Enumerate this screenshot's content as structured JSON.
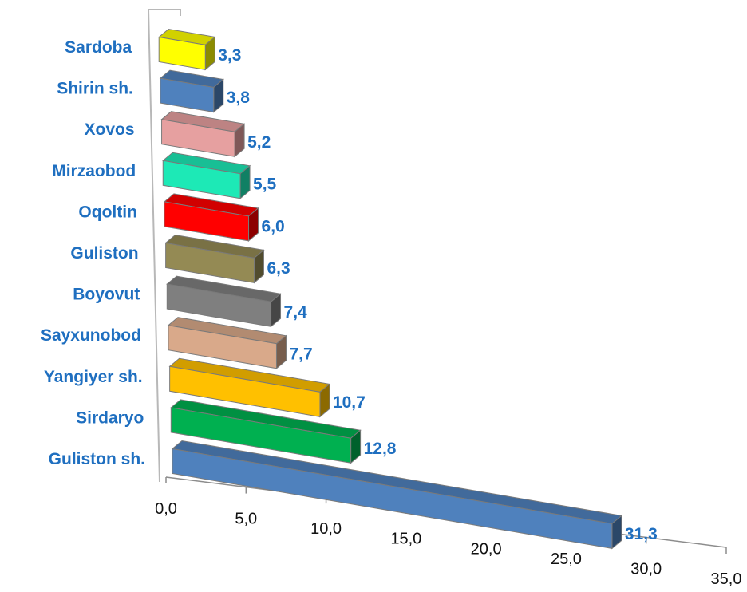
{
  "chart_data": {
    "type": "bar",
    "orientation": "horizontal",
    "style": "3d",
    "categories": [
      "Sardoba",
      "Shirin sh.",
      "Xovos",
      "Mirzaobod",
      "Oqoltin",
      "Guliston",
      "Boyovut",
      "Sayxunobod",
      "Yangiyer sh.",
      "Sirdaryo",
      "Guliston sh."
    ],
    "values": [
      3.3,
      3.8,
      5.2,
      5.5,
      6.0,
      6.3,
      7.4,
      7.7,
      10.7,
      12.8,
      31.3
    ],
    "value_labels": [
      "3,3",
      "3,8",
      "5,2",
      "5,5",
      "6,0",
      "6,3",
      "7,4",
      "7,7",
      "10,7",
      "12,8",
      "31,3"
    ],
    "colors": [
      "#ffff00",
      "#4f81bd",
      "#e6a0a0",
      "#1de9b6",
      "#ff0000",
      "#948a54",
      "#7f7f7f",
      "#d9a98a",
      "#ffc000",
      "#00b050",
      "#4f81bd"
    ],
    "x_ticks": [
      "0,0",
      "5,0",
      "10,0",
      "15,0",
      "20,0",
      "25,0",
      "30,0",
      "35,0"
    ],
    "xlim": [
      0,
      35
    ],
    "title": "",
    "xlabel": "",
    "ylabel": "",
    "grid": false,
    "legend": "none",
    "label_color": "#1f6fc0"
  }
}
